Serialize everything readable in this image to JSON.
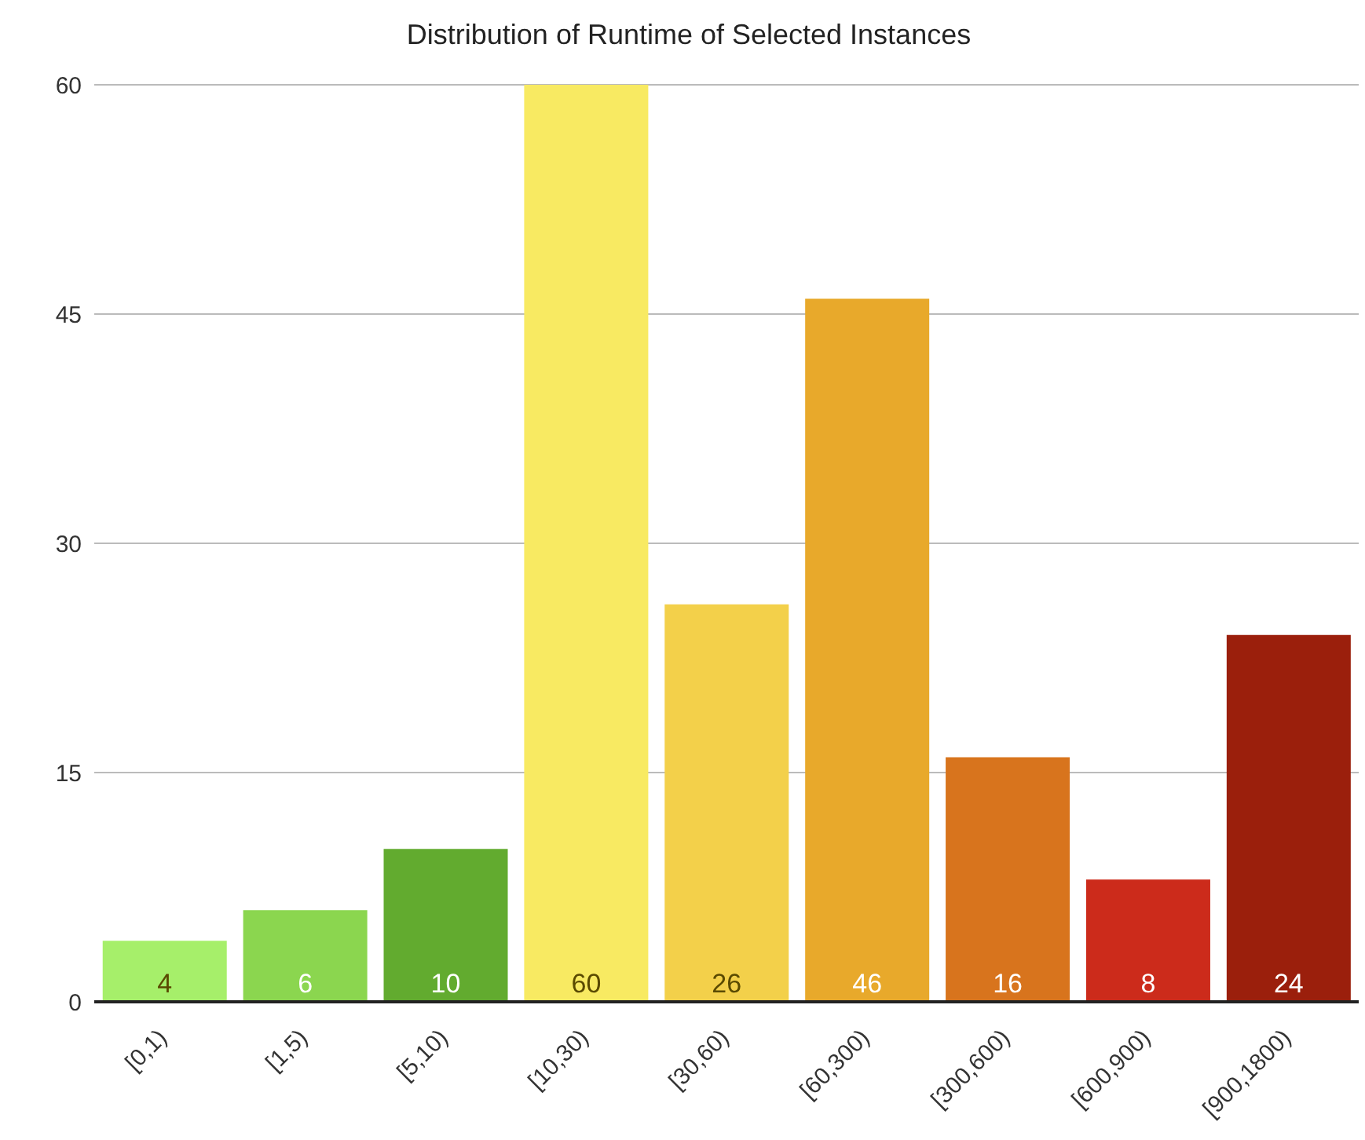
{
  "chart_data": {
    "type": "bar",
    "title": "Distribution of Runtime of Selected Instances",
    "categories": [
      "[0,1)",
      "[1,5)",
      "[5,10)",
      "[10,30)",
      "[30,60)",
      "[60,300)",
      "[300,600)",
      "[600,900)",
      "[900,1800)"
    ],
    "values": [
      4,
      6,
      10,
      60,
      26,
      46,
      16,
      8,
      24
    ],
    "colors": [
      "#a6ef6a",
      "#8bd64f",
      "#62ab2f",
      "#f8ea62",
      "#f3d04a",
      "#e8a92b",
      "#d8741d",
      "#cc2b1b",
      "#9b1f0c"
    ],
    "ylim": [
      0,
      60
    ],
    "yticks": [
      0,
      15,
      30,
      45,
      60
    ],
    "grid": "y",
    "data_labels": true
  }
}
